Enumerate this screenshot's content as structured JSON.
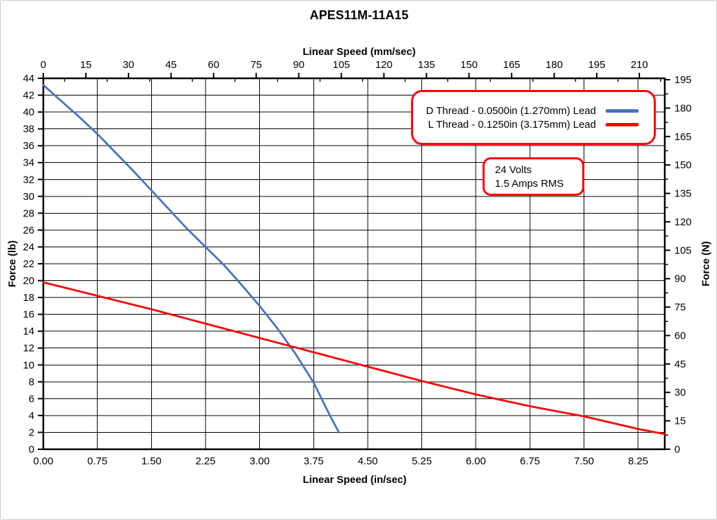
{
  "title": "APES11M-11A15",
  "legend": {
    "border_color": "#FF0000",
    "series": [
      {
        "label": "D Thread - 0.0500in (1.270mm) Lead",
        "color": "#4472C4"
      },
      {
        "label": "L Thread - 0.1250in (3.175mm) Lead",
        "color": "#FF0000"
      }
    ]
  },
  "annotation": {
    "border_color": "#FF0000",
    "lines": [
      "24 Volts",
      "1.5 Amps RMS"
    ]
  },
  "chart_data": {
    "type": "line",
    "title": "APES11M-11A15",
    "grid": "on",
    "colors": {
      "grid": "#000000",
      "frame": "#000000"
    },
    "axes": {
      "top_x": {
        "label": "Linear Speed (mm/sec)",
        "ticks": [
          0,
          15,
          30,
          45,
          60,
          75,
          90,
          105,
          120,
          135,
          150,
          165,
          180,
          195,
          210
        ],
        "range": [
          0,
          219
        ],
        "minor_step": 7.5
      },
      "bottom_x": {
        "label": "Linear Speed (in/sec)",
        "tick_labels": [
          "0.00",
          "0.75",
          "1.50",
          "2.25",
          "3.00",
          "3.75",
          "4.50",
          "5.25",
          "6.00",
          "6.75",
          "7.50",
          "8.25"
        ],
        "range": [
          0,
          8.62
        ]
      },
      "left_y": {
        "label": "Force (lb)",
        "ticks": [
          0,
          2,
          4,
          6,
          8,
          10,
          12,
          14,
          16,
          18,
          20,
          22,
          24,
          26,
          28,
          30,
          32,
          34,
          36,
          38,
          40,
          42,
          44
        ],
        "range": [
          0,
          44
        ]
      },
      "right_y": {
        "label": "Force (N)",
        "ticks": [
          0,
          15,
          30,
          45,
          60,
          75,
          90,
          105,
          120,
          135,
          150,
          165,
          180,
          195
        ],
        "range": [
          0,
          195.7
        ],
        "minor_step": 7.5
      }
    },
    "unit_conversions": {
      "mm_per_in": 25.4,
      "newton_per_lb": 4.44822
    },
    "series": [
      {
        "name": "D Thread - 0.0500in (1.270mm) Lead",
        "color": "#4472C4",
        "x_unit": "in/sec",
        "y_unit": "lb",
        "points": [
          [
            0,
            43.2
          ],
          [
            0.25,
            41.3
          ],
          [
            0.5,
            39.4
          ],
          [
            0.75,
            37.4
          ],
          [
            1.0,
            35.2
          ],
          [
            1.25,
            33.0
          ],
          [
            1.5,
            30.7
          ],
          [
            1.75,
            28.4
          ],
          [
            2.0,
            26.1
          ],
          [
            2.25,
            24.0
          ],
          [
            2.5,
            21.9
          ],
          [
            2.75,
            19.5
          ],
          [
            3.0,
            17.0
          ],
          [
            3.25,
            14.3
          ],
          [
            3.5,
            11.3
          ],
          [
            3.75,
            7.9
          ],
          [
            3.9,
            5.3
          ],
          [
            4.0,
            3.6
          ],
          [
            4.1,
            2.0
          ]
        ]
      },
      {
        "name": "L Thread - 0.1250in (3.175mm) Lead",
        "color": "#FF0000",
        "x_unit": "in/sec",
        "y_unit": "lb",
        "points": [
          [
            0,
            19.8
          ],
          [
            0.75,
            18.2
          ],
          [
            1.5,
            16.6
          ],
          [
            2.25,
            14.9
          ],
          [
            3.0,
            13.2
          ],
          [
            3.75,
            11.5
          ],
          [
            4.5,
            9.8
          ],
          [
            5.25,
            8.1
          ],
          [
            6.0,
            6.5
          ],
          [
            6.75,
            5.1
          ],
          [
            7.5,
            3.9
          ],
          [
            8.25,
            2.4
          ],
          [
            8.62,
            1.8
          ]
        ]
      }
    ]
  }
}
